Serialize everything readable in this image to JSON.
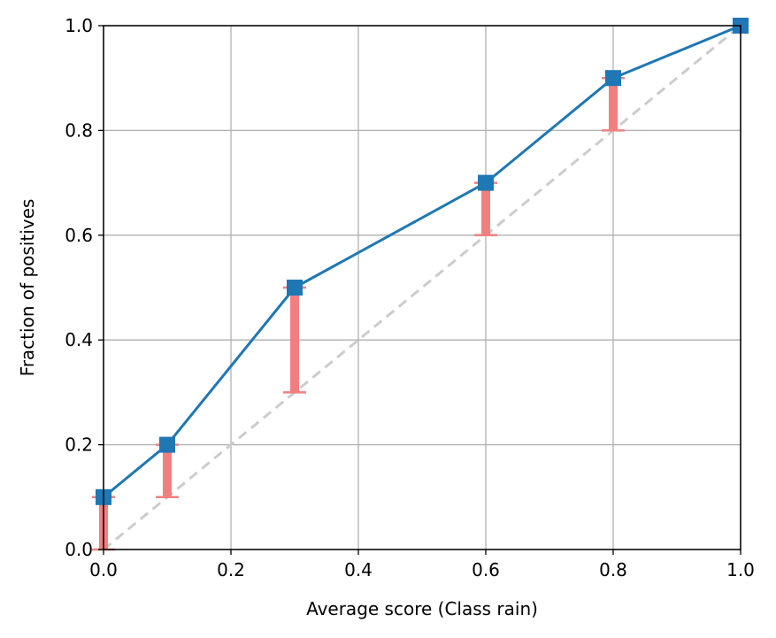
{
  "chart_data": {
    "type": "line",
    "title": "",
    "xlabel": "Average score (Class rain)",
    "ylabel": "Fraction of positives",
    "xlim": [
      0.0,
      1.0
    ],
    "ylim": [
      0.0,
      1.0
    ],
    "xticks": [
      "0.0",
      "0.2",
      "0.4",
      "0.6",
      "0.8",
      "1.0"
    ],
    "yticks": [
      "0.0",
      "0.2",
      "0.4",
      "0.6",
      "0.8",
      "1.0"
    ],
    "grid": true,
    "legend": "none",
    "series": [
      {
        "x": [
          0.0,
          0.1,
          0.3,
          0.6,
          0.8,
          1.0
        ],
        "y": [
          0.1,
          0.2,
          0.5,
          0.7,
          0.9,
          1.0
        ],
        "color": "#1f77b4",
        "marker": "square"
      }
    ],
    "error_bars": [
      {
        "x": 0.0,
        "low": 0.0,
        "high": 0.1
      },
      {
        "x": 0.1,
        "low": 0.1,
        "high": 0.2
      },
      {
        "x": 0.3,
        "low": 0.3,
        "high": 0.5
      },
      {
        "x": 0.6,
        "low": 0.6,
        "high": 0.7
      },
      {
        "x": 0.8,
        "low": 0.8,
        "high": 0.9
      }
    ],
    "error_bar_color": "#f08080",
    "reference_line": {
      "from": [
        0.0,
        0.0
      ],
      "to": [
        1.0,
        1.0
      ],
      "style": "dashed",
      "color": "#cccccc"
    }
  }
}
